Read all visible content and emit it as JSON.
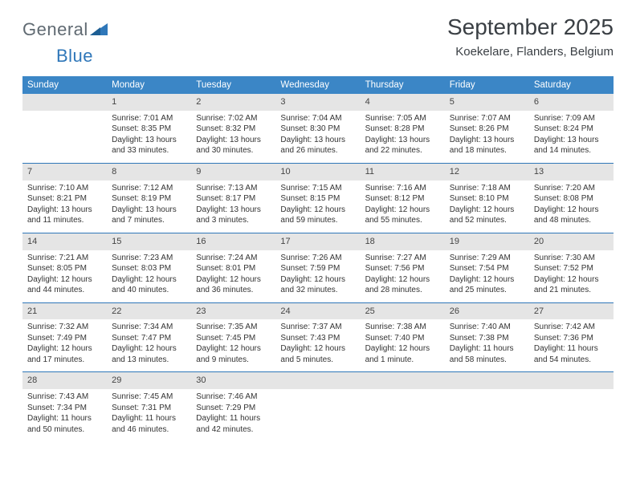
{
  "logo": {
    "part1": "General",
    "part2": "Blue"
  },
  "title": "September 2025",
  "subtitle": "Koekelare, Flanders, Belgium",
  "colors": {
    "header_bg": "#3b86c6",
    "header_text": "#ffffff",
    "band_bg": "#e5e5e5",
    "band_border": "#2f77b9",
    "body_text": "#333333",
    "logo_gray": "#606a72",
    "logo_blue": "#2f77b9"
  },
  "day_labels": [
    "Sunday",
    "Monday",
    "Tuesday",
    "Wednesday",
    "Thursday",
    "Friday",
    "Saturday"
  ],
  "weeks": [
    [
      {
        "num": "",
        "lines": []
      },
      {
        "num": "1",
        "lines": [
          "Sunrise: 7:01 AM",
          "Sunset: 8:35 PM",
          "Daylight: 13 hours",
          "and 33 minutes."
        ]
      },
      {
        "num": "2",
        "lines": [
          "Sunrise: 7:02 AM",
          "Sunset: 8:32 PM",
          "Daylight: 13 hours",
          "and 30 minutes."
        ]
      },
      {
        "num": "3",
        "lines": [
          "Sunrise: 7:04 AM",
          "Sunset: 8:30 PM",
          "Daylight: 13 hours",
          "and 26 minutes."
        ]
      },
      {
        "num": "4",
        "lines": [
          "Sunrise: 7:05 AM",
          "Sunset: 8:28 PM",
          "Daylight: 13 hours",
          "and 22 minutes."
        ]
      },
      {
        "num": "5",
        "lines": [
          "Sunrise: 7:07 AM",
          "Sunset: 8:26 PM",
          "Daylight: 13 hours",
          "and 18 minutes."
        ]
      },
      {
        "num": "6",
        "lines": [
          "Sunrise: 7:09 AM",
          "Sunset: 8:24 PM",
          "Daylight: 13 hours",
          "and 14 minutes."
        ]
      }
    ],
    [
      {
        "num": "7",
        "lines": [
          "Sunrise: 7:10 AM",
          "Sunset: 8:21 PM",
          "Daylight: 13 hours",
          "and 11 minutes."
        ]
      },
      {
        "num": "8",
        "lines": [
          "Sunrise: 7:12 AM",
          "Sunset: 8:19 PM",
          "Daylight: 13 hours",
          "and 7 minutes."
        ]
      },
      {
        "num": "9",
        "lines": [
          "Sunrise: 7:13 AM",
          "Sunset: 8:17 PM",
          "Daylight: 13 hours",
          "and 3 minutes."
        ]
      },
      {
        "num": "10",
        "lines": [
          "Sunrise: 7:15 AM",
          "Sunset: 8:15 PM",
          "Daylight: 12 hours",
          "and 59 minutes."
        ]
      },
      {
        "num": "11",
        "lines": [
          "Sunrise: 7:16 AM",
          "Sunset: 8:12 PM",
          "Daylight: 12 hours",
          "and 55 minutes."
        ]
      },
      {
        "num": "12",
        "lines": [
          "Sunrise: 7:18 AM",
          "Sunset: 8:10 PM",
          "Daylight: 12 hours",
          "and 52 minutes."
        ]
      },
      {
        "num": "13",
        "lines": [
          "Sunrise: 7:20 AM",
          "Sunset: 8:08 PM",
          "Daylight: 12 hours",
          "and 48 minutes."
        ]
      }
    ],
    [
      {
        "num": "14",
        "lines": [
          "Sunrise: 7:21 AM",
          "Sunset: 8:05 PM",
          "Daylight: 12 hours",
          "and 44 minutes."
        ]
      },
      {
        "num": "15",
        "lines": [
          "Sunrise: 7:23 AM",
          "Sunset: 8:03 PM",
          "Daylight: 12 hours",
          "and 40 minutes."
        ]
      },
      {
        "num": "16",
        "lines": [
          "Sunrise: 7:24 AM",
          "Sunset: 8:01 PM",
          "Daylight: 12 hours",
          "and 36 minutes."
        ]
      },
      {
        "num": "17",
        "lines": [
          "Sunrise: 7:26 AM",
          "Sunset: 7:59 PM",
          "Daylight: 12 hours",
          "and 32 minutes."
        ]
      },
      {
        "num": "18",
        "lines": [
          "Sunrise: 7:27 AM",
          "Sunset: 7:56 PM",
          "Daylight: 12 hours",
          "and 28 minutes."
        ]
      },
      {
        "num": "19",
        "lines": [
          "Sunrise: 7:29 AM",
          "Sunset: 7:54 PM",
          "Daylight: 12 hours",
          "and 25 minutes."
        ]
      },
      {
        "num": "20",
        "lines": [
          "Sunrise: 7:30 AM",
          "Sunset: 7:52 PM",
          "Daylight: 12 hours",
          "and 21 minutes."
        ]
      }
    ],
    [
      {
        "num": "21",
        "lines": [
          "Sunrise: 7:32 AM",
          "Sunset: 7:49 PM",
          "Daylight: 12 hours",
          "and 17 minutes."
        ]
      },
      {
        "num": "22",
        "lines": [
          "Sunrise: 7:34 AM",
          "Sunset: 7:47 PM",
          "Daylight: 12 hours",
          "and 13 minutes."
        ]
      },
      {
        "num": "23",
        "lines": [
          "Sunrise: 7:35 AM",
          "Sunset: 7:45 PM",
          "Daylight: 12 hours",
          "and 9 minutes."
        ]
      },
      {
        "num": "24",
        "lines": [
          "Sunrise: 7:37 AM",
          "Sunset: 7:43 PM",
          "Daylight: 12 hours",
          "and 5 minutes."
        ]
      },
      {
        "num": "25",
        "lines": [
          "Sunrise: 7:38 AM",
          "Sunset: 7:40 PM",
          "Daylight: 12 hours",
          "and 1 minute."
        ]
      },
      {
        "num": "26",
        "lines": [
          "Sunrise: 7:40 AM",
          "Sunset: 7:38 PM",
          "Daylight: 11 hours",
          "and 58 minutes."
        ]
      },
      {
        "num": "27",
        "lines": [
          "Sunrise: 7:42 AM",
          "Sunset: 7:36 PM",
          "Daylight: 11 hours",
          "and 54 minutes."
        ]
      }
    ],
    [
      {
        "num": "28",
        "lines": [
          "Sunrise: 7:43 AM",
          "Sunset: 7:34 PM",
          "Daylight: 11 hours",
          "and 50 minutes."
        ]
      },
      {
        "num": "29",
        "lines": [
          "Sunrise: 7:45 AM",
          "Sunset: 7:31 PM",
          "Daylight: 11 hours",
          "and 46 minutes."
        ]
      },
      {
        "num": "30",
        "lines": [
          "Sunrise: 7:46 AM",
          "Sunset: 7:29 PM",
          "Daylight: 11 hours",
          "and 42 minutes."
        ]
      },
      {
        "num": "",
        "lines": []
      },
      {
        "num": "",
        "lines": []
      },
      {
        "num": "",
        "lines": []
      },
      {
        "num": "",
        "lines": []
      }
    ]
  ]
}
